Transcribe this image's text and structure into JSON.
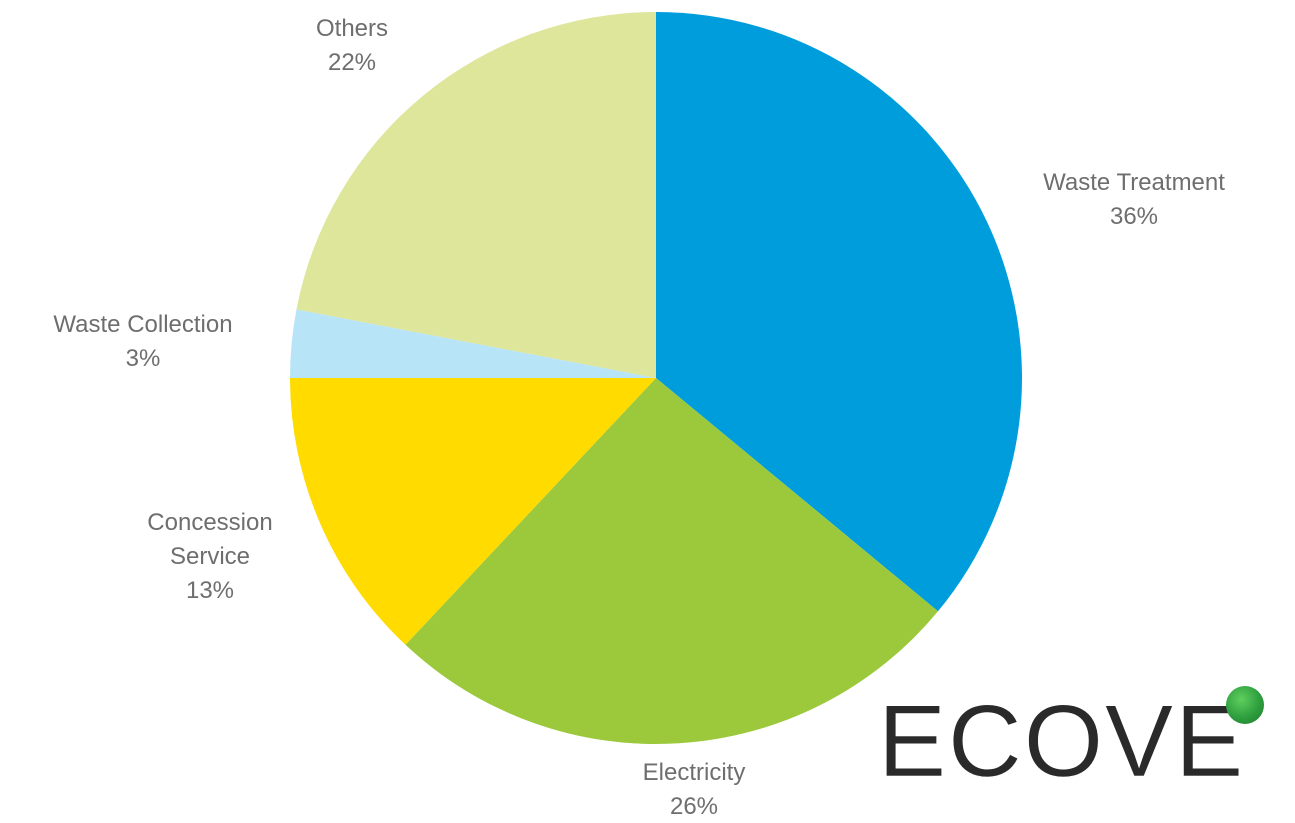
{
  "chart_data": {
    "type": "pie",
    "title": "",
    "slices": [
      {
        "label": [
          "Waste Treatment",
          "36%"
        ],
        "value": 36,
        "color": "#009ddc"
      },
      {
        "label": [
          "Electricity",
          "26%"
        ],
        "value": 26,
        "color": "#9cc93b"
      },
      {
        "label": [
          "Concession",
          "Service",
          "13%"
        ],
        "value": 13,
        "color": "#ffdb00"
      },
      {
        "label": [
          "Waste Collection",
          "3%"
        ],
        "value": 3,
        "color": "#b8e4f7"
      },
      {
        "label": [
          "Others",
          "22%"
        ],
        "value": 22,
        "color": "#dde69a"
      }
    ],
    "start": "12 o'clock",
    "direction": "clockwise"
  },
  "logo": {
    "text": "ECOVE",
    "dot_color": "#2e9e3e"
  }
}
